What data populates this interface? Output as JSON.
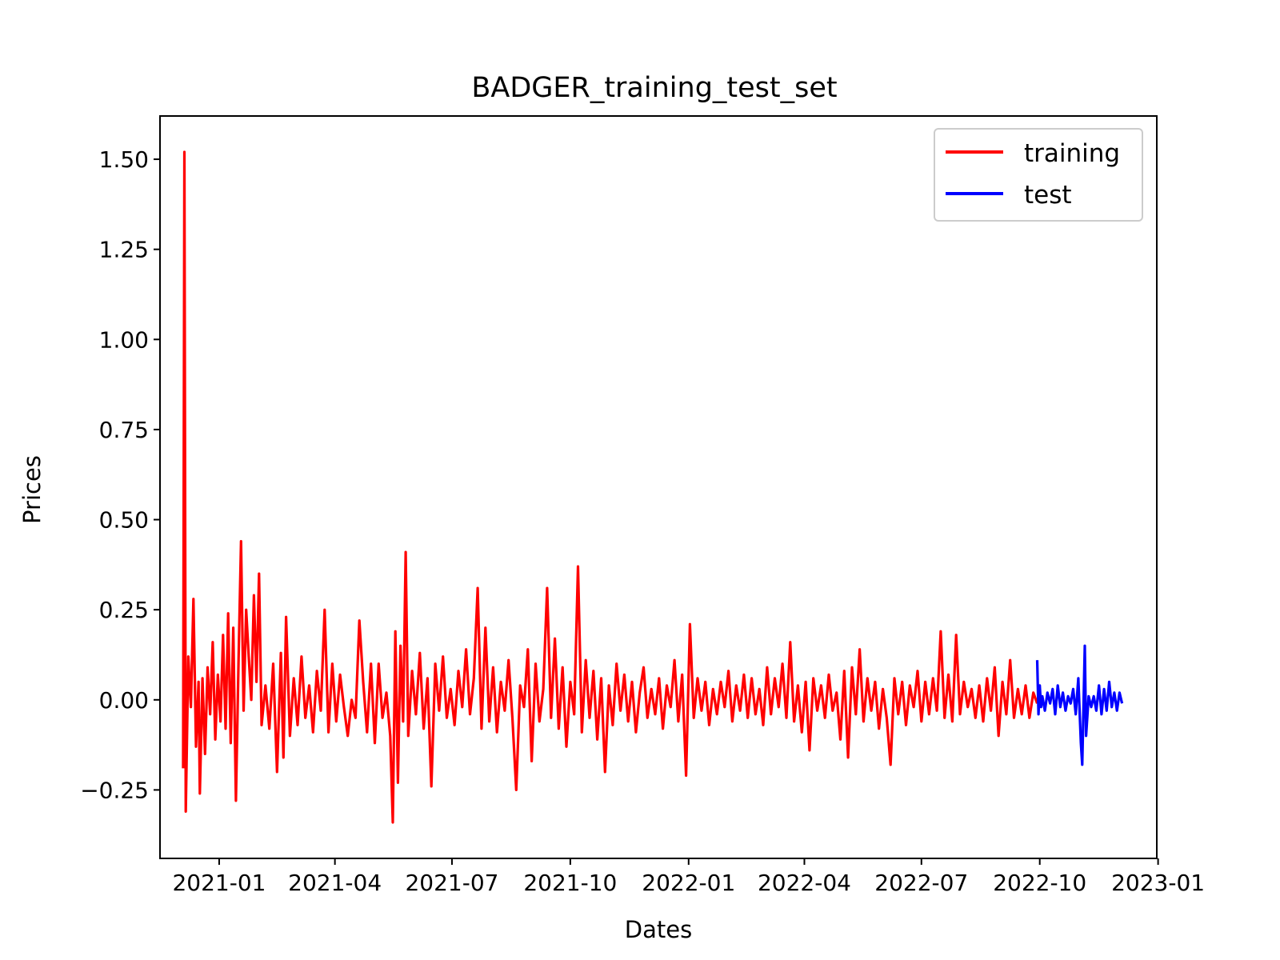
{
  "chart_data": {
    "type": "line",
    "title": "BADGER_training_test_set",
    "xlabel": "Dates",
    "ylabel": "Prices",
    "xlim": [
      "2020-11-16",
      "2022-12-31"
    ],
    "ylim": [
      -0.44,
      1.62
    ],
    "x_ticks": [
      "2021-01",
      "2021-04",
      "2021-07",
      "2021-10",
      "2022-01",
      "2022-04",
      "2022-07",
      "2022-10",
      "2023-01"
    ],
    "y_ticks": [
      {
        "value": 1.5,
        "label": "1.50"
      },
      {
        "value": 1.25,
        "label": "1.25"
      },
      {
        "value": 1.0,
        "label": "1.00"
      },
      {
        "value": 0.75,
        "label": "0.75"
      },
      {
        "value": 0.5,
        "label": "0.50"
      },
      {
        "value": 0.25,
        "label": "0.25"
      },
      {
        "value": 0.0,
        "label": "0.00"
      },
      {
        "value": -0.25,
        "label": "−0.25"
      }
    ],
    "grid": false,
    "legend_position": "top-right",
    "series": [
      {
        "name": "training",
        "color": "#ff0000",
        "points": [
          [
            "2020-12-04",
            -0.19
          ],
          [
            "2020-12-05",
            1.52
          ],
          [
            "2020-12-06",
            -0.31
          ],
          [
            "2020-12-08",
            0.12
          ],
          [
            "2020-12-10",
            -0.02
          ],
          [
            "2020-12-12",
            0.28
          ],
          [
            "2020-12-14",
            -0.13
          ],
          [
            "2020-12-16",
            0.05
          ],
          [
            "2020-12-17",
            -0.26
          ],
          [
            "2020-12-19",
            0.06
          ],
          [
            "2020-12-21",
            -0.15
          ],
          [
            "2020-12-23",
            0.09
          ],
          [
            "2020-12-25",
            -0.04
          ],
          [
            "2020-12-27",
            0.16
          ],
          [
            "2020-12-29",
            -0.11
          ],
          [
            "2020-12-31",
            0.07
          ],
          [
            "2021-01-02",
            -0.06
          ],
          [
            "2021-01-04",
            0.18
          ],
          [
            "2021-01-06",
            -0.08
          ],
          [
            "2021-01-08",
            0.24
          ],
          [
            "2021-01-10",
            -0.12
          ],
          [
            "2021-01-12",
            0.2
          ],
          [
            "2021-01-14",
            -0.28
          ],
          [
            "2021-01-16",
            0.1
          ],
          [
            "2021-01-18",
            0.44
          ],
          [
            "2021-01-20",
            -0.03
          ],
          [
            "2021-01-22",
            0.25
          ],
          [
            "2021-01-24",
            0.12
          ],
          [
            "2021-01-26",
            0.0
          ],
          [
            "2021-01-28",
            0.29
          ],
          [
            "2021-01-30",
            0.05
          ],
          [
            "2021-02-01",
            0.35
          ],
          [
            "2021-02-03",
            -0.07
          ],
          [
            "2021-02-06",
            0.04
          ],
          [
            "2021-02-09",
            -0.08
          ],
          [
            "2021-02-12",
            0.1
          ],
          [
            "2021-02-15",
            -0.2
          ],
          [
            "2021-02-18",
            0.13
          ],
          [
            "2021-02-20",
            -0.16
          ],
          [
            "2021-02-22",
            0.23
          ],
          [
            "2021-02-25",
            -0.1
          ],
          [
            "2021-02-28",
            0.06
          ],
          [
            "2021-03-03",
            -0.07
          ],
          [
            "2021-03-06",
            0.12
          ],
          [
            "2021-03-09",
            -0.05
          ],
          [
            "2021-03-12",
            0.04
          ],
          [
            "2021-03-15",
            -0.09
          ],
          [
            "2021-03-18",
            0.08
          ],
          [
            "2021-03-21",
            -0.03
          ],
          [
            "2021-03-24",
            0.25
          ],
          [
            "2021-03-27",
            -0.09
          ],
          [
            "2021-03-30",
            0.1
          ],
          [
            "2021-04-02",
            -0.06
          ],
          [
            "2021-04-05",
            0.07
          ],
          [
            "2021-04-08",
            -0.02
          ],
          [
            "2021-04-11",
            -0.1
          ],
          [
            "2021-04-14",
            0.0
          ],
          [
            "2021-04-17",
            -0.05
          ],
          [
            "2021-04-20",
            0.22
          ],
          [
            "2021-04-23",
            0.05
          ],
          [
            "2021-04-26",
            -0.09
          ],
          [
            "2021-04-29",
            0.1
          ],
          [
            "2021-05-02",
            -0.12
          ],
          [
            "2021-05-05",
            0.1
          ],
          [
            "2021-05-08",
            -0.05
          ],
          [
            "2021-05-11",
            0.02
          ],
          [
            "2021-05-14",
            -0.1
          ],
          [
            "2021-05-16",
            -0.34
          ],
          [
            "2021-05-18",
            0.19
          ],
          [
            "2021-05-20",
            -0.23
          ],
          [
            "2021-05-22",
            0.15
          ],
          [
            "2021-05-24",
            -0.06
          ],
          [
            "2021-05-26",
            0.41
          ],
          [
            "2021-05-28",
            -0.1
          ],
          [
            "2021-05-31",
            0.08
          ],
          [
            "2021-06-03",
            -0.04
          ],
          [
            "2021-06-06",
            0.13
          ],
          [
            "2021-06-09",
            -0.08
          ],
          [
            "2021-06-12",
            0.06
          ],
          [
            "2021-06-15",
            -0.24
          ],
          [
            "2021-06-18",
            0.1
          ],
          [
            "2021-06-21",
            -0.03
          ],
          [
            "2021-06-24",
            0.12
          ],
          [
            "2021-06-27",
            -0.05
          ],
          [
            "2021-06-30",
            0.03
          ],
          [
            "2021-07-03",
            -0.07
          ],
          [
            "2021-07-06",
            0.08
          ],
          [
            "2021-07-09",
            -0.02
          ],
          [
            "2021-07-12",
            0.14
          ],
          [
            "2021-07-15",
            -0.04
          ],
          [
            "2021-07-18",
            0.06
          ],
          [
            "2021-07-21",
            0.31
          ],
          [
            "2021-07-24",
            -0.08
          ],
          [
            "2021-07-27",
            0.2
          ],
          [
            "2021-07-30",
            -0.06
          ],
          [
            "2021-08-02",
            0.09
          ],
          [
            "2021-08-05",
            -0.09
          ],
          [
            "2021-08-08",
            0.05
          ],
          [
            "2021-08-11",
            -0.03
          ],
          [
            "2021-08-14",
            0.11
          ],
          [
            "2021-08-17",
            -0.05
          ],
          [
            "2021-08-20",
            -0.25
          ],
          [
            "2021-08-23",
            0.04
          ],
          [
            "2021-08-26",
            -0.02
          ],
          [
            "2021-08-29",
            0.14
          ],
          [
            "2021-09-01",
            -0.17
          ],
          [
            "2021-09-04",
            0.1
          ],
          [
            "2021-09-07",
            -0.06
          ],
          [
            "2021-09-10",
            0.03
          ],
          [
            "2021-09-13",
            0.31
          ],
          [
            "2021-09-16",
            -0.05
          ],
          [
            "2021-09-19",
            0.17
          ],
          [
            "2021-09-22",
            -0.08
          ],
          [
            "2021-09-25",
            0.09
          ],
          [
            "2021-09-28",
            -0.13
          ],
          [
            "2021-10-01",
            0.05
          ],
          [
            "2021-10-04",
            -0.04
          ],
          [
            "2021-10-07",
            0.37
          ],
          [
            "2021-10-10",
            -0.09
          ],
          [
            "2021-10-13",
            0.11
          ],
          [
            "2021-10-16",
            -0.05
          ],
          [
            "2021-10-19",
            0.08
          ],
          [
            "2021-10-22",
            -0.11
          ],
          [
            "2021-10-25",
            0.06
          ],
          [
            "2021-10-28",
            -0.2
          ],
          [
            "2021-10-31",
            0.04
          ],
          [
            "2021-11-03",
            -0.07
          ],
          [
            "2021-11-06",
            0.1
          ],
          [
            "2021-11-09",
            -0.03
          ],
          [
            "2021-11-12",
            0.07
          ],
          [
            "2021-11-15",
            -0.06
          ],
          [
            "2021-11-18",
            0.05
          ],
          [
            "2021-11-21",
            -0.09
          ],
          [
            "2021-11-24",
            0.02
          ],
          [
            "2021-11-27",
            0.09
          ],
          [
            "2021-11-30",
            -0.05
          ],
          [
            "2021-12-03",
            0.03
          ],
          [
            "2021-12-06",
            -0.04
          ],
          [
            "2021-12-09",
            0.06
          ],
          [
            "2021-12-12",
            -0.08
          ],
          [
            "2021-12-15",
            0.04
          ],
          [
            "2021-12-18",
            -0.02
          ],
          [
            "2021-12-21",
            0.11
          ],
          [
            "2021-12-24",
            -0.06
          ],
          [
            "2021-12-27",
            0.07
          ],
          [
            "2021-12-30",
            -0.21
          ],
          [
            "2022-01-02",
            0.21
          ],
          [
            "2022-01-05",
            -0.05
          ],
          [
            "2022-01-08",
            0.06
          ],
          [
            "2022-01-11",
            -0.03
          ],
          [
            "2022-01-14",
            0.05
          ],
          [
            "2022-01-17",
            -0.07
          ],
          [
            "2022-01-20",
            0.03
          ],
          [
            "2022-01-23",
            -0.04
          ],
          [
            "2022-01-26",
            0.05
          ],
          [
            "2022-01-29",
            -0.02
          ],
          [
            "2022-02-01",
            0.08
          ],
          [
            "2022-02-04",
            -0.06
          ],
          [
            "2022-02-07",
            0.04
          ],
          [
            "2022-02-10",
            -0.03
          ],
          [
            "2022-02-13",
            0.07
          ],
          [
            "2022-02-16",
            -0.05
          ],
          [
            "2022-02-19",
            0.06
          ],
          [
            "2022-02-22",
            -0.04
          ],
          [
            "2022-02-25",
            0.03
          ],
          [
            "2022-02-28",
            -0.07
          ],
          [
            "2022-03-03",
            0.09
          ],
          [
            "2022-03-06",
            -0.04
          ],
          [
            "2022-03-09",
            0.06
          ],
          [
            "2022-03-12",
            -0.02
          ],
          [
            "2022-03-15",
            0.1
          ],
          [
            "2022-03-18",
            -0.05
          ],
          [
            "2022-03-21",
            0.16
          ],
          [
            "2022-03-24",
            -0.06
          ],
          [
            "2022-03-27",
            0.04
          ],
          [
            "2022-03-30",
            -0.09
          ],
          [
            "2022-04-02",
            0.05
          ],
          [
            "2022-04-05",
            -0.14
          ],
          [
            "2022-04-08",
            0.06
          ],
          [
            "2022-04-11",
            -0.03
          ],
          [
            "2022-04-14",
            0.04
          ],
          [
            "2022-04-17",
            -0.05
          ],
          [
            "2022-04-20",
            0.07
          ],
          [
            "2022-04-23",
            -0.03
          ],
          [
            "2022-04-26",
            0.02
          ],
          [
            "2022-04-29",
            -0.11
          ],
          [
            "2022-05-02",
            0.08
          ],
          [
            "2022-05-05",
            -0.16
          ],
          [
            "2022-05-08",
            0.09
          ],
          [
            "2022-05-11",
            -0.04
          ],
          [
            "2022-05-14",
            0.14
          ],
          [
            "2022-05-17",
            -0.06
          ],
          [
            "2022-05-20",
            0.06
          ],
          [
            "2022-05-23",
            -0.03
          ],
          [
            "2022-05-26",
            0.05
          ],
          [
            "2022-05-29",
            -0.08
          ],
          [
            "2022-06-01",
            0.03
          ],
          [
            "2022-06-04",
            -0.05
          ],
          [
            "2022-06-07",
            -0.18
          ],
          [
            "2022-06-10",
            0.06
          ],
          [
            "2022-06-13",
            -0.04
          ],
          [
            "2022-06-16",
            0.05
          ],
          [
            "2022-06-19",
            -0.07
          ],
          [
            "2022-06-22",
            0.04
          ],
          [
            "2022-06-25",
            -0.02
          ],
          [
            "2022-06-28",
            0.08
          ],
          [
            "2022-07-01",
            -0.06
          ],
          [
            "2022-07-04",
            0.05
          ],
          [
            "2022-07-07",
            -0.04
          ],
          [
            "2022-07-10",
            0.06
          ],
          [
            "2022-07-13",
            -0.03
          ],
          [
            "2022-07-16",
            0.19
          ],
          [
            "2022-07-19",
            -0.05
          ],
          [
            "2022-07-22",
            0.07
          ],
          [
            "2022-07-25",
            -0.06
          ],
          [
            "2022-07-28",
            0.18
          ],
          [
            "2022-07-31",
            -0.04
          ],
          [
            "2022-08-03",
            0.05
          ],
          [
            "2022-08-06",
            -0.02
          ],
          [
            "2022-08-09",
            0.03
          ],
          [
            "2022-08-12",
            -0.05
          ],
          [
            "2022-08-15",
            0.04
          ],
          [
            "2022-08-18",
            -0.06
          ],
          [
            "2022-08-21",
            0.06
          ],
          [
            "2022-08-24",
            -0.03
          ],
          [
            "2022-08-27",
            0.09
          ],
          [
            "2022-08-30",
            -0.1
          ],
          [
            "2022-09-02",
            0.05
          ],
          [
            "2022-09-05",
            -0.04
          ],
          [
            "2022-09-08",
            0.11
          ],
          [
            "2022-09-11",
            -0.05
          ],
          [
            "2022-09-14",
            0.03
          ],
          [
            "2022-09-17",
            -0.04
          ],
          [
            "2022-09-20",
            0.04
          ],
          [
            "2022-09-23",
            -0.05
          ],
          [
            "2022-09-26",
            0.02
          ],
          [
            "2022-09-29",
            -0.01
          ]
        ]
      },
      {
        "name": "test",
        "color": "#0000ff",
        "points": [
          [
            "2022-09-29",
            0.11
          ],
          [
            "2022-09-30",
            -0.04
          ],
          [
            "2022-10-01",
            0.04
          ],
          [
            "2022-10-02",
            -0.02
          ],
          [
            "2022-10-03",
            0.01
          ],
          [
            "2022-10-05",
            -0.03
          ],
          [
            "2022-10-07",
            0.02
          ],
          [
            "2022-10-09",
            -0.01
          ],
          [
            "2022-10-11",
            0.03
          ],
          [
            "2022-10-13",
            -0.04
          ],
          [
            "2022-10-15",
            0.04
          ],
          [
            "2022-10-17",
            -0.02
          ],
          [
            "2022-10-19",
            0.02
          ],
          [
            "2022-10-21",
            -0.03
          ],
          [
            "2022-10-23",
            0.01
          ],
          [
            "2022-10-25",
            -0.01
          ],
          [
            "2022-10-27",
            0.03
          ],
          [
            "2022-10-29",
            -0.04
          ],
          [
            "2022-10-31",
            0.06
          ],
          [
            "2022-11-02",
            -0.12
          ],
          [
            "2022-11-03",
            -0.18
          ],
          [
            "2022-11-05",
            0.15
          ],
          [
            "2022-11-06",
            -0.1
          ],
          [
            "2022-11-08",
            0.01
          ],
          [
            "2022-11-10",
            -0.02
          ],
          [
            "2022-11-12",
            0.01
          ],
          [
            "2022-11-14",
            -0.03
          ],
          [
            "2022-11-16",
            0.04
          ],
          [
            "2022-11-18",
            -0.04
          ],
          [
            "2022-11-20",
            0.03
          ],
          [
            "2022-11-22",
            -0.03
          ],
          [
            "2022-11-24",
            0.05
          ],
          [
            "2022-11-26",
            -0.02
          ],
          [
            "2022-11-28",
            0.02
          ],
          [
            "2022-11-30",
            -0.03
          ],
          [
            "2022-12-02",
            0.02
          ],
          [
            "2022-12-04",
            -0.01
          ]
        ]
      }
    ]
  }
}
